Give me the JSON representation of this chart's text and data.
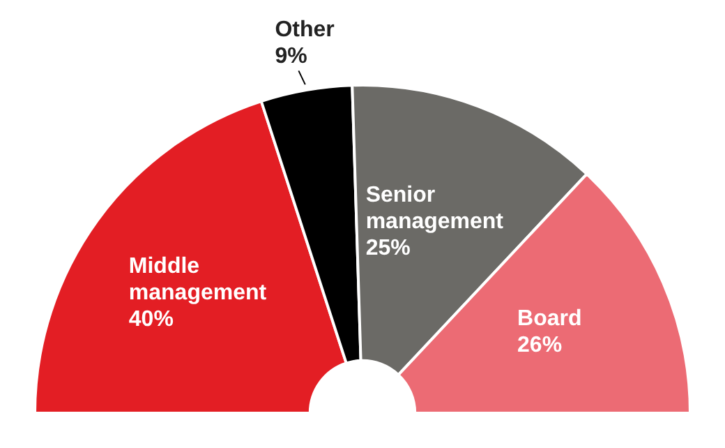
{
  "chart_data": {
    "type": "donut",
    "categories": [
      "Middle management",
      "Other",
      "Senior management",
      "Board"
    ],
    "values": [
      40,
      9,
      25,
      26
    ],
    "value_labels": [
      "40%",
      "9%",
      "25%",
      "26%"
    ],
    "colors": [
      "#e31e24",
      "#000000",
      "#6b6a66",
      "#ec6b74"
    ],
    "legend": false
  }
}
